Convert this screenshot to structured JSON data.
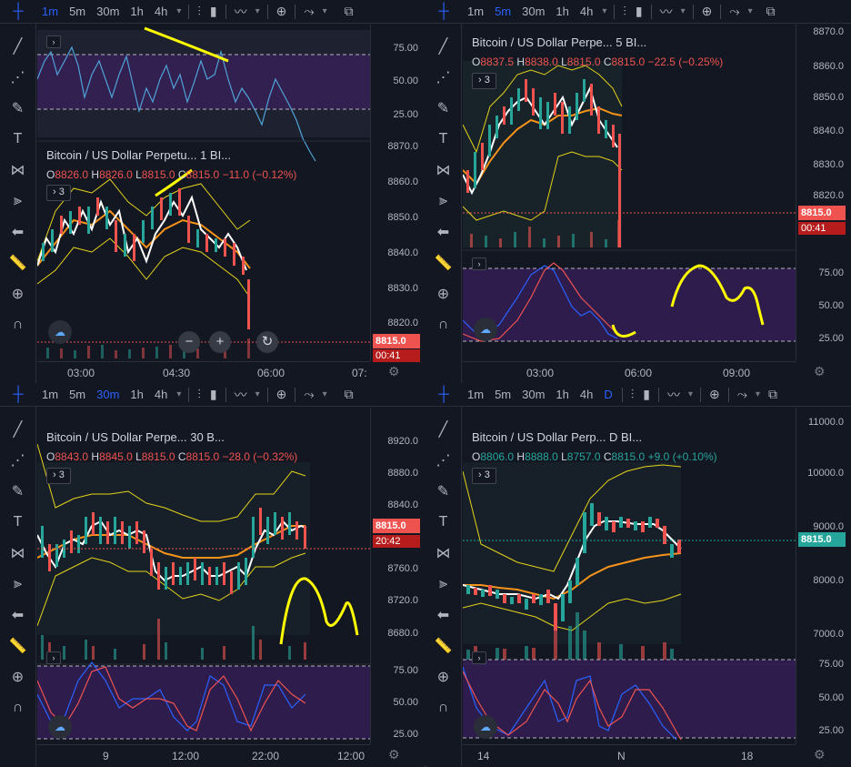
{
  "timeframes": [
    "1m",
    "5m",
    "30m",
    "1h",
    "4h"
  ],
  "timeframes_br": [
    "1m",
    "5m",
    "30m",
    "1h",
    "4h",
    "D"
  ],
  "panels": {
    "tl": {
      "title": "Bitcoin / US Dollar Perpetu...  1  BI...",
      "ohlc": {
        "o": "8826.0",
        "h": "8826.0",
        "l": "8815.0",
        "c": "8815.0",
        "chg": "−11.0 (−0.12%)"
      },
      "indicators_count": "3",
      "price_ticks": [
        "75.00",
        "50.00",
        "25.00",
        "8870.0",
        "8860.0",
        "8850.0",
        "8840.0",
        "8830.0",
        "8820.0"
      ],
      "price_tag": "8815.0",
      "time_tag": "00:41",
      "time_ticks": [
        "03:00",
        "04:30",
        "06:00",
        "07:"
      ]
    },
    "tr": {
      "title": "Bitcoin / US Dollar Perpe...  5  BI...",
      "ohlc": {
        "o": "8837.5",
        "h": "8838.0",
        "l": "8815.0",
        "c": "8815.0",
        "chg": "−22.5 (−0.25%)"
      },
      "indicators_count": "3",
      "price_ticks": [
        "8870.0",
        "8860.0",
        "8850.0",
        "8840.0",
        "8830.0",
        "8820.0",
        "75.00",
        "50.00",
        "25.00"
      ],
      "price_tag": "8815.0",
      "time_tag": "00:41",
      "time_ticks": [
        "03:00",
        "06:00",
        "09:00"
      ]
    },
    "bl": {
      "title": "Bitcoin / US Dollar Perpe...  30  B...",
      "ohlc": {
        "o": "8843.0",
        "h": "8845.0",
        "l": "8815.0",
        "c": "8815.0",
        "chg": "−28.0 (−0.32%)"
      },
      "indicators_count": "3",
      "price_ticks": [
        "8920.0",
        "8880.0",
        "8840.0",
        "8760.0",
        "8720.0",
        "8680.0",
        "75.00",
        "50.00",
        "25.00"
      ],
      "price_tag": "8815.0",
      "time_tag": "20:42",
      "time_ticks": [
        "9",
        "12:00",
        "22:00",
        "12:00"
      ]
    },
    "br": {
      "title": "Bitcoin / US Dollar Perp...  D  BI...",
      "ohlc": {
        "o": "8806.0",
        "h": "8888.0",
        "l": "8757.0",
        "c": "8815.0",
        "chg": "+9.0 (+0.10%)"
      },
      "indicators_count": "3",
      "price_ticks": [
        "11000.0",
        "10000.0",
        "9000.0",
        "8000.0",
        "7000.0",
        "75.00",
        "50.00",
        "25.00"
      ],
      "price_tag": "8815.0",
      "time_ticks": [
        "14",
        "N",
        "18"
      ]
    }
  },
  "zoom_controls": {
    "minus": "−",
    "plus": "+",
    "reset": "↻"
  },
  "colors": {
    "bg": "#131722",
    "up": "#26a69a",
    "down": "#ef5350",
    "orange": "#f7931a",
    "yellow_band": "#e5d31b",
    "osc_fill": "#3b1f5e",
    "annotation": "#ffff00"
  }
}
